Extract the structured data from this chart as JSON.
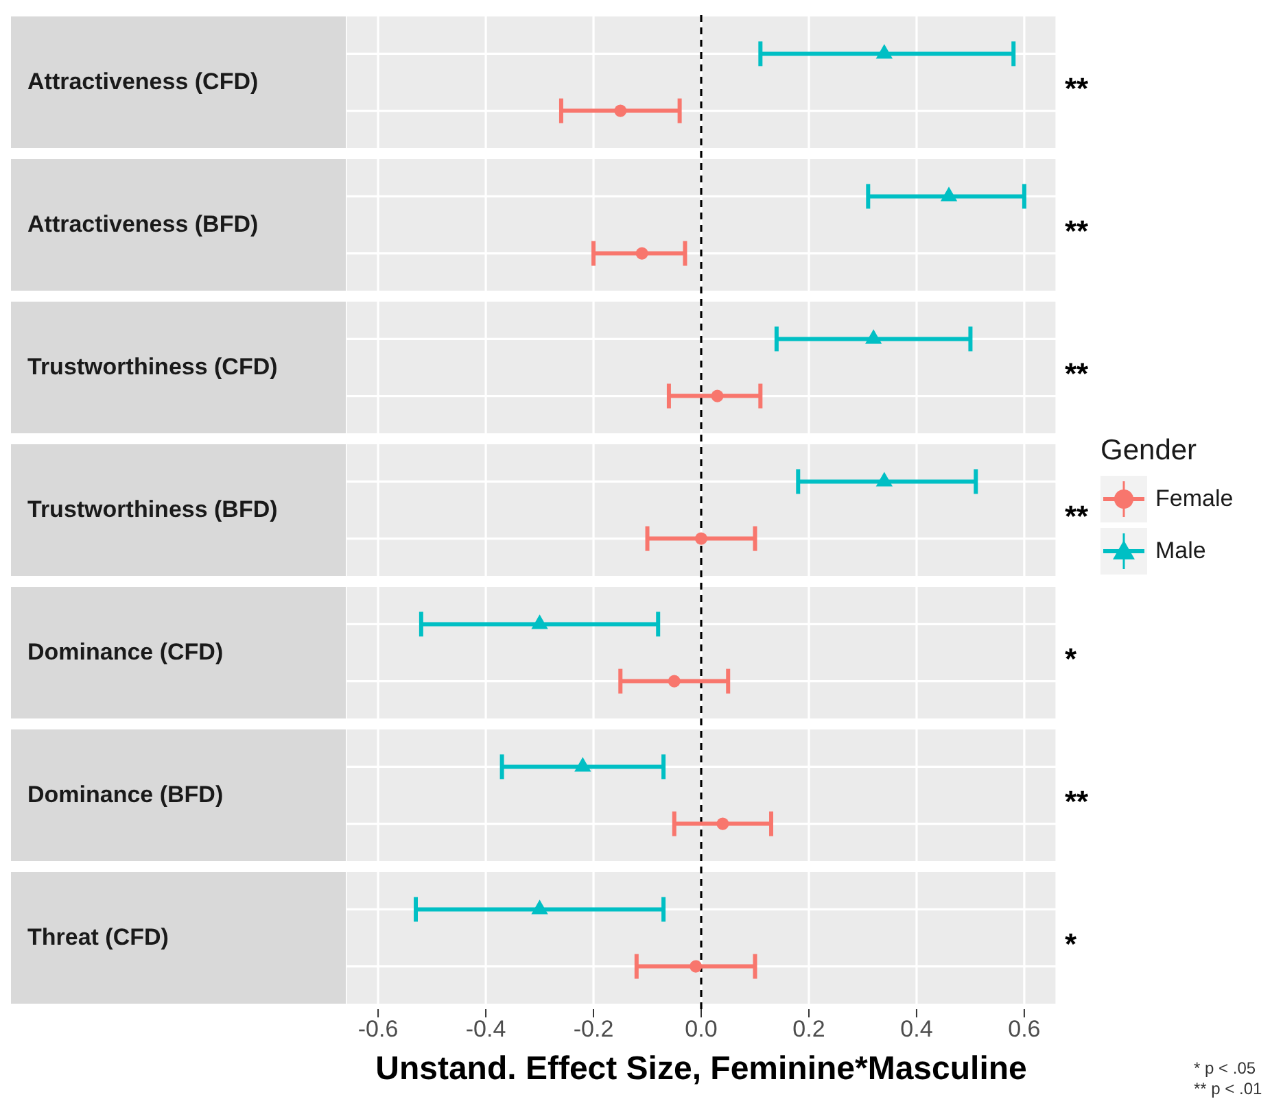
{
  "chart_data": {
    "type": "scatter",
    "orientation": "horizontal",
    "categories": [
      "Attractiveness (CFD)",
      "Attractiveness (BFD)",
      "Trustworthiness (CFD)",
      "Trustworthiness (BFD)",
      "Dominance (CFD)",
      "Dominance (BFD)",
      "Threat (CFD)"
    ],
    "xlabel": "Unstand. Effect Size, Feminine*Masculine",
    "xlim": [
      -0.66,
      0.66
    ],
    "xticks": [
      -0.6,
      -0.4,
      -0.2,
      {
        "value": 0,
        "label": "0.0"
      },
      0.2,
      0.4,
      0.6
    ],
    "grid": true,
    "legend": "right",
    "legend_title": "Gender",
    "ref_lines": [
      {
        "axis": "x",
        "value": 0,
        "line_style": "dashed",
        "color": "#000000"
      }
    ],
    "annotations": [
      "**",
      "**",
      "**",
      "**",
      "*",
      "**",
      "*",
      "* p < .05",
      "** p < .01"
    ],
    "series": [
      {
        "name": "Male",
        "color": "#00bfc4",
        "marker": "triangle",
        "values": [
          0.34,
          0.46,
          0.32,
          0.34,
          -0.3,
          -0.22,
          -0.3
        ],
        "errors": [
          [
            0.11,
            0.58
          ],
          [
            0.31,
            0.6
          ],
          [
            0.14,
            0.5
          ],
          [
            0.18,
            0.51
          ],
          [
            -0.52,
            -0.08
          ],
          [
            -0.37,
            -0.07
          ],
          [
            -0.53,
            -0.07
          ]
        ]
      },
      {
        "name": "Female",
        "color": "#f8766d",
        "marker": "circle",
        "values": [
          -0.15,
          -0.11,
          0.03,
          0.0,
          -0.05,
          0.04,
          -0.01
        ],
        "errors": [
          [
            -0.26,
            -0.04
          ],
          [
            -0.2,
            -0.03
          ],
          [
            -0.06,
            0.11
          ],
          [
            -0.1,
            0.1
          ],
          [
            -0.15,
            0.05
          ],
          [
            -0.05,
            0.13
          ],
          [
            -0.12,
            0.1
          ]
        ]
      }
    ]
  }
}
